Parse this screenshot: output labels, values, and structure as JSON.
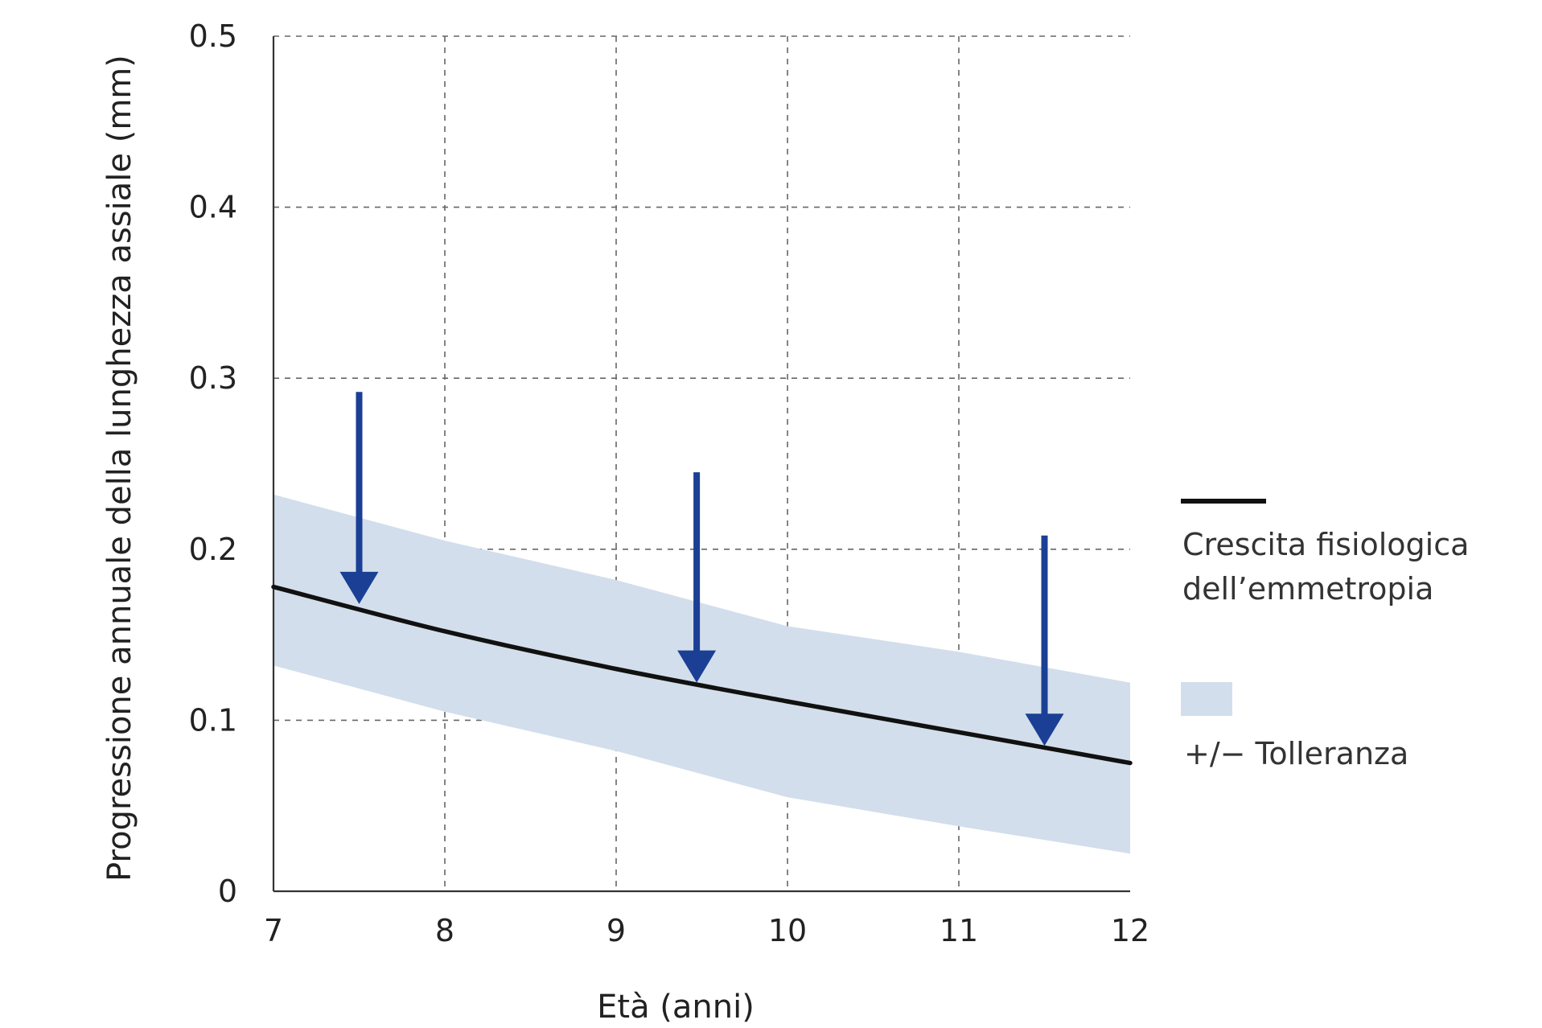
{
  "chart_data": {
    "type": "line",
    "xlabel": "Età (anni)",
    "ylabel": "Progressione annuale della lunghezza assiale (mm)",
    "xlim": [
      7,
      12
    ],
    "ylim": [
      0,
      0.5
    ],
    "x_ticks": [
      "7",
      "8",
      "9",
      "10",
      "11",
      "12"
    ],
    "y_ticks": [
      "0",
      "0.1",
      "0.2",
      "0.3",
      "0.4",
      "0.5"
    ],
    "grid": true,
    "series": [
      {
        "name": "Crescita fisiologica dell’emmetropia",
        "color": "#111111",
        "x": [
          7,
          8,
          9,
          10,
          11,
          12
        ],
        "y": [
          0.178,
          0.152,
          0.13,
          0.111,
          0.093,
          0.075
        ]
      }
    ],
    "band": {
      "name": "+/− Tolleranza",
      "color": "#d2deeb",
      "x": [
        7,
        8,
        9,
        10,
        11,
        12
      ],
      "upper": [
        0.232,
        0.205,
        0.182,
        0.155,
        0.14,
        0.122
      ],
      "lower": [
        0.132,
        0.105,
        0.082,
        0.055,
        0.038,
        0.022
      ]
    },
    "arrows": [
      {
        "x": 7.5,
        "from": 0.292,
        "to": 0.168
      },
      {
        "x": 9.47,
        "from": 0.245,
        "to": 0.122
      },
      {
        "x": 11.5,
        "from": 0.208,
        "to": 0.085
      }
    ],
    "arrow_color": "#1b3f94",
    "legend": {
      "position": "right",
      "line_label_1": "Crescita fisiologica",
      "line_label_2": "dell’emmetropia",
      "band_label": "+/− Tolleranza"
    }
  }
}
